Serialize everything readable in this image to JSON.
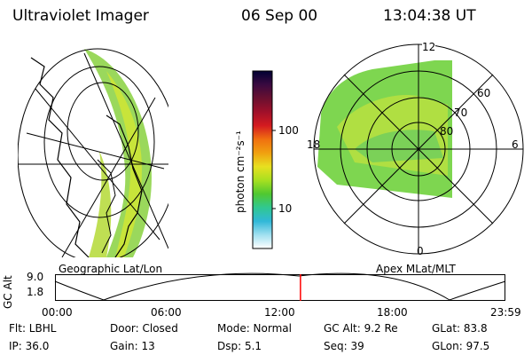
{
  "header": {
    "instrument": "Ultraviolet Imager",
    "date": "06 Sep 00",
    "time": "13:04:38 UT"
  },
  "geo_panel": {
    "label": "Geographic Lat/Lon"
  },
  "colorbar": {
    "unit_label": "photon cm⁻²s⁻¹",
    "scale": "log",
    "ticks": [
      "100",
      "10"
    ],
    "colors": [
      "#000033",
      "#3a0a40",
      "#6a1030",
      "#a0102a",
      "#d41a20",
      "#f07010",
      "#f0a010",
      "#e8e020",
      "#a8e020",
      "#50c830",
      "#30c890",
      "#30b8d8",
      "#a0e0f0",
      "#ffffff"
    ]
  },
  "polar_panel": {
    "label": "Apex MLat/MLT",
    "mlt_labels": {
      "top": "12",
      "left": "18",
      "right": "6",
      "bottom": "0"
    },
    "lat_labels": [
      "60",
      "70",
      "80"
    ]
  },
  "altitude_plot": {
    "ylabel": "GC Alt",
    "yticks": [
      "9.0",
      "1.8"
    ],
    "xticks": [
      "00:00",
      "06:00",
      "12:00",
      "18:00",
      "23:59"
    ],
    "current_time_fraction": 0.545,
    "marker_color": "#ff0000"
  },
  "status": {
    "filter": "Flt: LBHL",
    "ip": "IP: 36.0",
    "door": "Door: Closed",
    "gain": "Gain: 13",
    "mode": "Mode: Normal",
    "dsp": "Dsp:    5.1",
    "gc_alt": "GC Alt: 9.2 Re",
    "seq": "Seq: 39",
    "glat": "GLat:  83.8",
    "glon": "GLon:  97.5"
  }
}
